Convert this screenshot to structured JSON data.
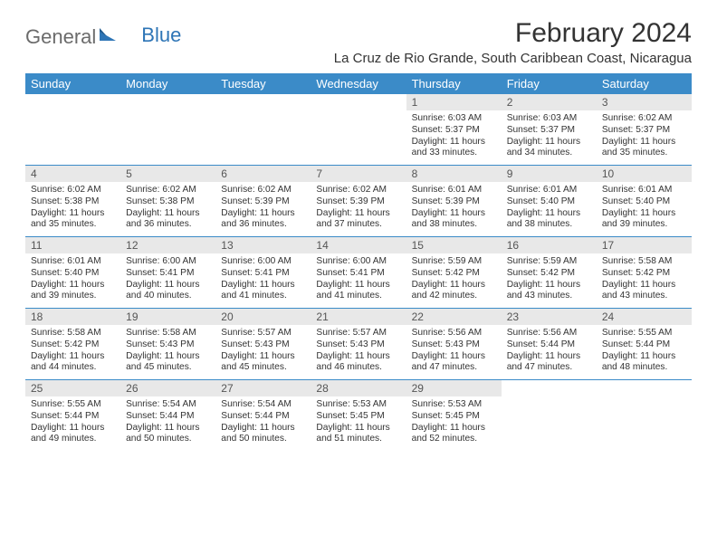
{
  "logo": {
    "text1": "General",
    "text2": "Blue",
    "icon_color": "#2e75b6"
  },
  "title": "February 2024",
  "location": "La Cruz de Rio Grande, South Caribbean Coast, Nicaragua",
  "colors": {
    "header_bg": "#3b8bc8",
    "header_fg": "#ffffff",
    "daynum_bg": "#e8e8e8",
    "row_divider": "#3b8bc8",
    "text": "#333333",
    "logo_gray": "#6b6b6b",
    "logo_blue": "#2e75b6"
  },
  "days_of_week": [
    "Sunday",
    "Monday",
    "Tuesday",
    "Wednesday",
    "Thursday",
    "Friday",
    "Saturday"
  ],
  "weeks": [
    [
      {
        "n": "",
        "sr": "",
        "ss": "",
        "dl": ""
      },
      {
        "n": "",
        "sr": "",
        "ss": "",
        "dl": ""
      },
      {
        "n": "",
        "sr": "",
        "ss": "",
        "dl": ""
      },
      {
        "n": "",
        "sr": "",
        "ss": "",
        "dl": ""
      },
      {
        "n": "1",
        "sr": "Sunrise: 6:03 AM",
        "ss": "Sunset: 5:37 PM",
        "dl": "Daylight: 11 hours and 33 minutes."
      },
      {
        "n": "2",
        "sr": "Sunrise: 6:03 AM",
        "ss": "Sunset: 5:37 PM",
        "dl": "Daylight: 11 hours and 34 minutes."
      },
      {
        "n": "3",
        "sr": "Sunrise: 6:02 AM",
        "ss": "Sunset: 5:37 PM",
        "dl": "Daylight: 11 hours and 35 minutes."
      }
    ],
    [
      {
        "n": "4",
        "sr": "Sunrise: 6:02 AM",
        "ss": "Sunset: 5:38 PM",
        "dl": "Daylight: 11 hours and 35 minutes."
      },
      {
        "n": "5",
        "sr": "Sunrise: 6:02 AM",
        "ss": "Sunset: 5:38 PM",
        "dl": "Daylight: 11 hours and 36 minutes."
      },
      {
        "n": "6",
        "sr": "Sunrise: 6:02 AM",
        "ss": "Sunset: 5:39 PM",
        "dl": "Daylight: 11 hours and 36 minutes."
      },
      {
        "n": "7",
        "sr": "Sunrise: 6:02 AM",
        "ss": "Sunset: 5:39 PM",
        "dl": "Daylight: 11 hours and 37 minutes."
      },
      {
        "n": "8",
        "sr": "Sunrise: 6:01 AM",
        "ss": "Sunset: 5:39 PM",
        "dl": "Daylight: 11 hours and 38 minutes."
      },
      {
        "n": "9",
        "sr": "Sunrise: 6:01 AM",
        "ss": "Sunset: 5:40 PM",
        "dl": "Daylight: 11 hours and 38 minutes."
      },
      {
        "n": "10",
        "sr": "Sunrise: 6:01 AM",
        "ss": "Sunset: 5:40 PM",
        "dl": "Daylight: 11 hours and 39 minutes."
      }
    ],
    [
      {
        "n": "11",
        "sr": "Sunrise: 6:01 AM",
        "ss": "Sunset: 5:40 PM",
        "dl": "Daylight: 11 hours and 39 minutes."
      },
      {
        "n": "12",
        "sr": "Sunrise: 6:00 AM",
        "ss": "Sunset: 5:41 PM",
        "dl": "Daylight: 11 hours and 40 minutes."
      },
      {
        "n": "13",
        "sr": "Sunrise: 6:00 AM",
        "ss": "Sunset: 5:41 PM",
        "dl": "Daylight: 11 hours and 41 minutes."
      },
      {
        "n": "14",
        "sr": "Sunrise: 6:00 AM",
        "ss": "Sunset: 5:41 PM",
        "dl": "Daylight: 11 hours and 41 minutes."
      },
      {
        "n": "15",
        "sr": "Sunrise: 5:59 AM",
        "ss": "Sunset: 5:42 PM",
        "dl": "Daylight: 11 hours and 42 minutes."
      },
      {
        "n": "16",
        "sr": "Sunrise: 5:59 AM",
        "ss": "Sunset: 5:42 PM",
        "dl": "Daylight: 11 hours and 43 minutes."
      },
      {
        "n": "17",
        "sr": "Sunrise: 5:58 AM",
        "ss": "Sunset: 5:42 PM",
        "dl": "Daylight: 11 hours and 43 minutes."
      }
    ],
    [
      {
        "n": "18",
        "sr": "Sunrise: 5:58 AM",
        "ss": "Sunset: 5:42 PM",
        "dl": "Daylight: 11 hours and 44 minutes."
      },
      {
        "n": "19",
        "sr": "Sunrise: 5:58 AM",
        "ss": "Sunset: 5:43 PM",
        "dl": "Daylight: 11 hours and 45 minutes."
      },
      {
        "n": "20",
        "sr": "Sunrise: 5:57 AM",
        "ss": "Sunset: 5:43 PM",
        "dl": "Daylight: 11 hours and 45 minutes."
      },
      {
        "n": "21",
        "sr": "Sunrise: 5:57 AM",
        "ss": "Sunset: 5:43 PM",
        "dl": "Daylight: 11 hours and 46 minutes."
      },
      {
        "n": "22",
        "sr": "Sunrise: 5:56 AM",
        "ss": "Sunset: 5:43 PM",
        "dl": "Daylight: 11 hours and 47 minutes."
      },
      {
        "n": "23",
        "sr": "Sunrise: 5:56 AM",
        "ss": "Sunset: 5:44 PM",
        "dl": "Daylight: 11 hours and 47 minutes."
      },
      {
        "n": "24",
        "sr": "Sunrise: 5:55 AM",
        "ss": "Sunset: 5:44 PM",
        "dl": "Daylight: 11 hours and 48 minutes."
      }
    ],
    [
      {
        "n": "25",
        "sr": "Sunrise: 5:55 AM",
        "ss": "Sunset: 5:44 PM",
        "dl": "Daylight: 11 hours and 49 minutes."
      },
      {
        "n": "26",
        "sr": "Sunrise: 5:54 AM",
        "ss": "Sunset: 5:44 PM",
        "dl": "Daylight: 11 hours and 50 minutes."
      },
      {
        "n": "27",
        "sr": "Sunrise: 5:54 AM",
        "ss": "Sunset: 5:44 PM",
        "dl": "Daylight: 11 hours and 50 minutes."
      },
      {
        "n": "28",
        "sr": "Sunrise: 5:53 AM",
        "ss": "Sunset: 5:45 PM",
        "dl": "Daylight: 11 hours and 51 minutes."
      },
      {
        "n": "29",
        "sr": "Sunrise: 5:53 AM",
        "ss": "Sunset: 5:45 PM",
        "dl": "Daylight: 11 hours and 52 minutes."
      },
      {
        "n": "",
        "sr": "",
        "ss": "",
        "dl": ""
      },
      {
        "n": "",
        "sr": "",
        "ss": "",
        "dl": ""
      }
    ]
  ]
}
